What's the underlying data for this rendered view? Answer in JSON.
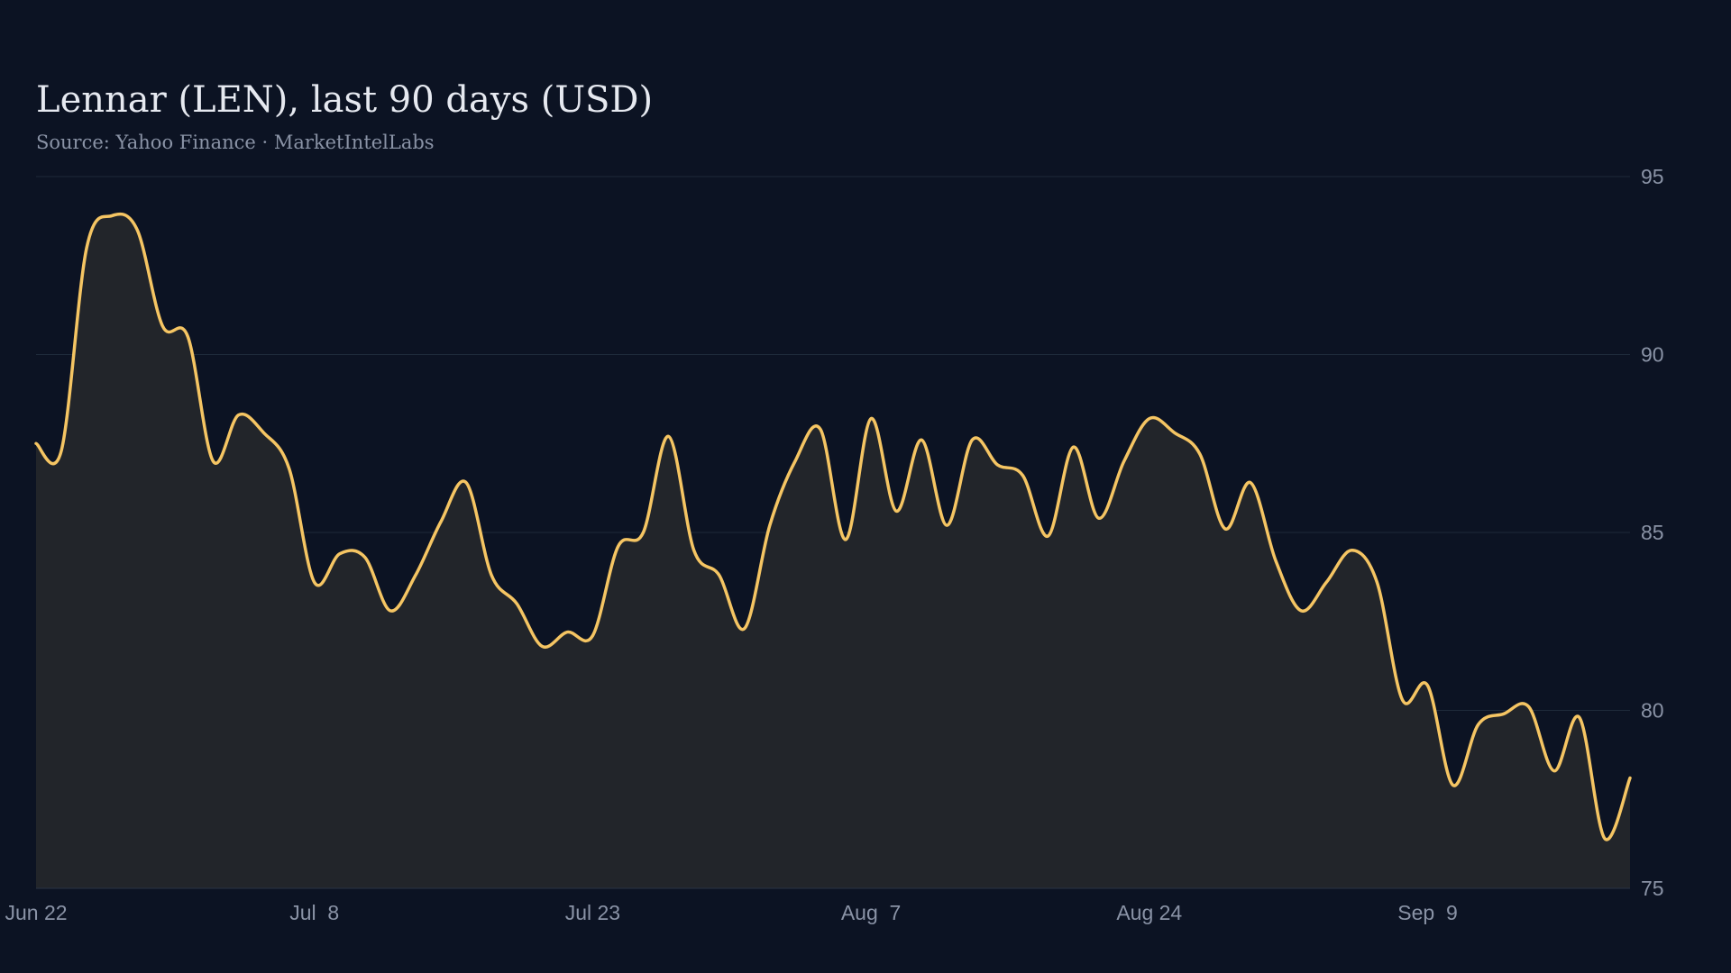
{
  "chart_data": {
    "type": "area",
    "title": "Lennar (LEN), last 90 days (USD)",
    "subtitle": "Source: Yahoo Finance · MarketIntelLabs",
    "xlabel": "",
    "ylabel": "",
    "ylim": [
      75,
      95
    ],
    "y_ticks": [
      75,
      80,
      85,
      90,
      95
    ],
    "y_axis_side": "right",
    "x_tick_labels": [
      "Jun 22",
      "Jul  8",
      "Jul 23",
      "Aug  7",
      "Aug 24",
      "Sep  9"
    ],
    "x_tick_indices": [
      0,
      11,
      22,
      33,
      44,
      55
    ],
    "grid": true,
    "legend": "none",
    "colors": {
      "background": "#0c1323",
      "line": "#f5c563",
      "area_fill": "#22252a",
      "grid": "#1e2a3a",
      "text": "#8a93a6",
      "title": "#e6e9f0"
    },
    "series": [
      {
        "values": [
          87.5,
          87.3,
          93.0,
          93.9,
          93.5,
          90.8,
          90.5,
          87.0,
          88.3,
          87.8,
          86.8,
          83.6,
          84.4,
          84.3,
          82.8,
          83.8,
          85.3,
          86.4,
          83.8,
          83.0,
          81.8,
          82.2,
          82.1,
          84.6,
          85.0,
          87.7,
          84.5,
          83.8,
          82.3,
          85.2,
          87.0,
          87.9,
          84.8,
          88.2,
          85.6,
          87.6,
          85.2,
          87.6,
          86.9,
          86.6,
          84.9,
          87.4,
          85.4,
          87.0,
          88.2,
          87.8,
          87.2,
          85.1,
          86.4,
          84.2,
          82.8,
          83.6,
          84.5,
          83.6,
          80.3,
          80.7,
          77.9,
          79.6,
          79.9,
          80.1,
          78.3,
          79.8,
          76.4,
          78.1
        ]
      }
    ]
  }
}
